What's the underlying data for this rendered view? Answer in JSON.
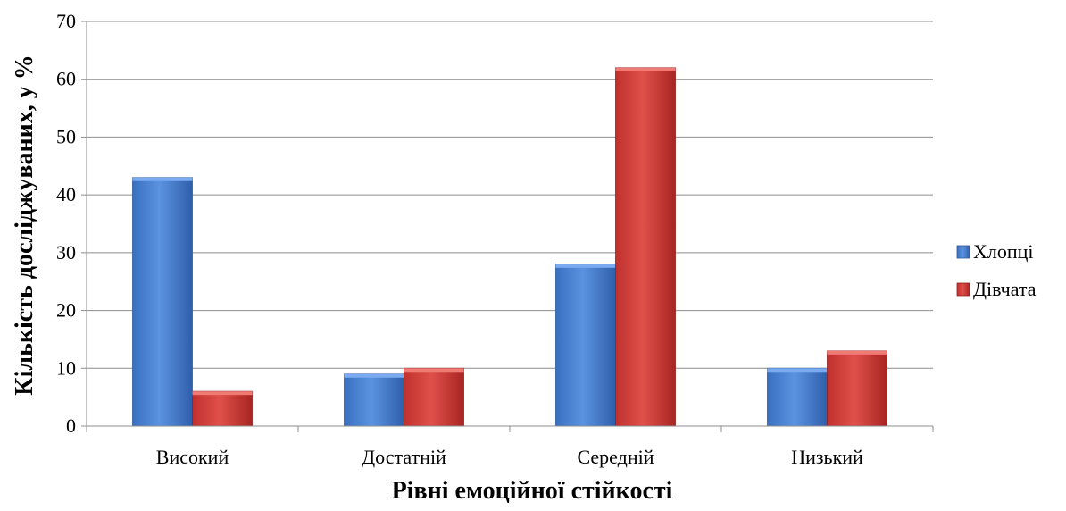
{
  "chart_data": {
    "type": "bar",
    "categories": [
      "Високий",
      "Достатній",
      "Середній",
      "Низький"
    ],
    "series": [
      {
        "name": "Хлопці",
        "values": [
          43,
          9,
          28,
          10
        ],
        "color": "#4a7fcf"
      },
      {
        "name": "Дівчата",
        "values": [
          6,
          10,
          62,
          13
        ],
        "color": "#d2403c"
      }
    ],
    "ylim": [
      0,
      70
    ],
    "yticks": [
      0,
      10,
      20,
      30,
      40,
      50,
      60,
      70
    ],
    "xlabel": "Рівні емоційної стійкості",
    "ylabel": "Кількість досліджуваних, у %",
    "grid": true,
    "legend": "right"
  }
}
